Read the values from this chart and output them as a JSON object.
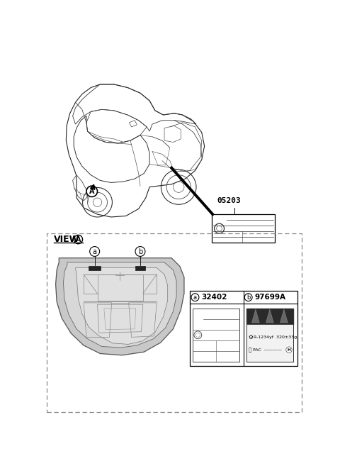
{
  "bg_color": "#ffffff",
  "top": {
    "part_number": "05203",
    "circle_label": "A"
  },
  "bottom": {
    "view_label": "VIEW",
    "view_circle": "A",
    "label_a": "a",
    "label_b": "b",
    "part_a": "32402",
    "part_b": "97699A",
    "ref_line1": "R-1234yf  320±33g",
    "ref_line2": "PAC"
  },
  "colors": {
    "outline": "#333333",
    "light_gray": "#c8c8c8",
    "mid_gray": "#aaaaaa",
    "dark": "#1a1a1a",
    "dashed": "#888888",
    "white": "#ffffff"
  }
}
